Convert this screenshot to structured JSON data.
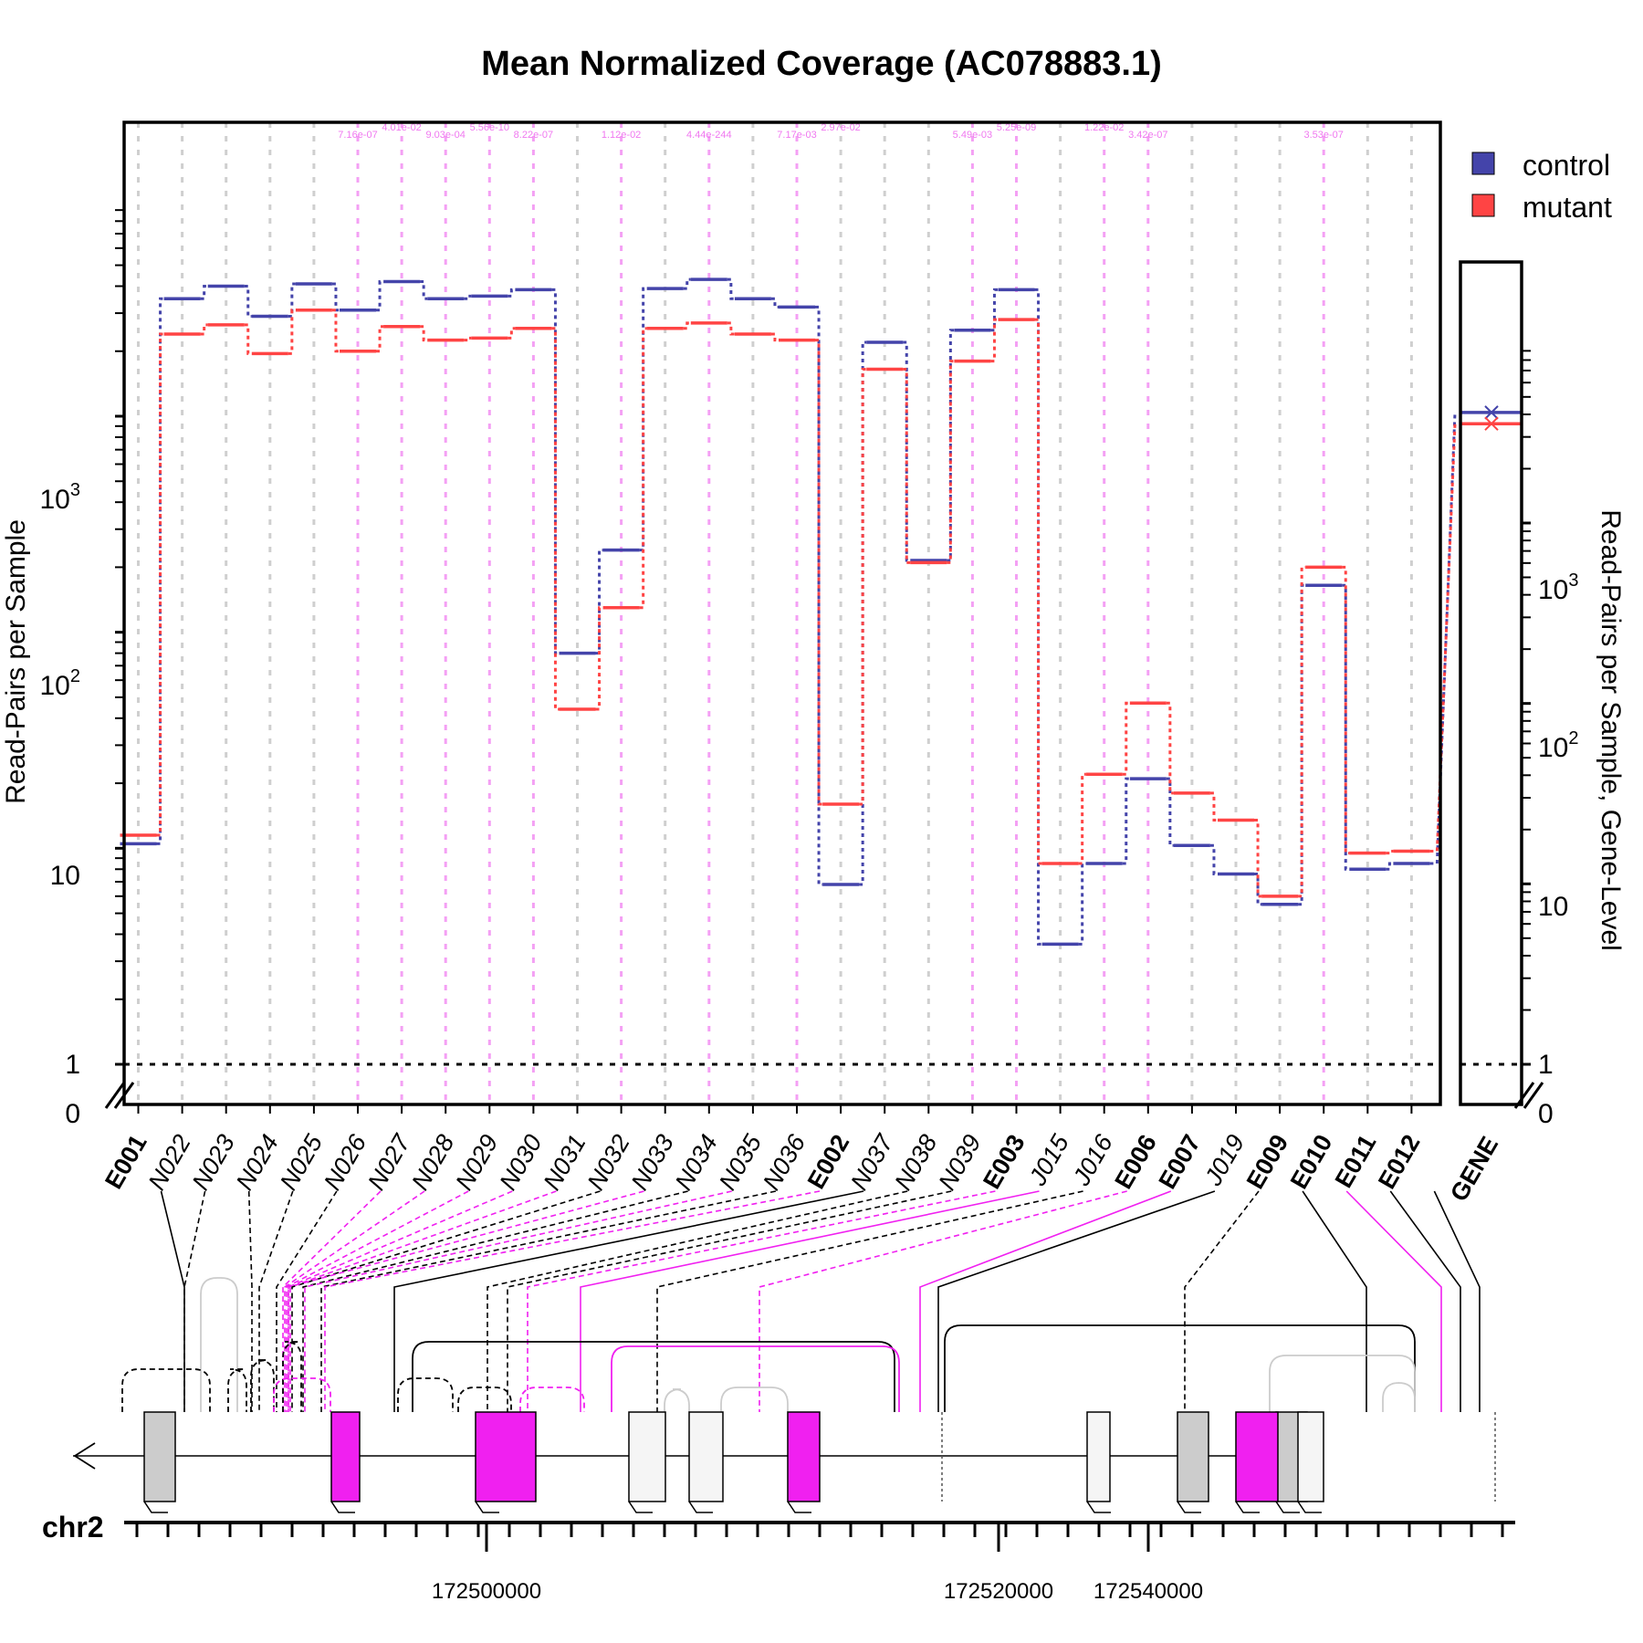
{
  "title": "Mean Normalized Coverage (AC078883.1)",
  "ylabel_left": "Read-Pairs per Sample",
  "ylabel_right": "Read-Pairs per Sample, Gene-Level",
  "legend": {
    "control_label": "control",
    "mutant_label": "mutant",
    "control_color": "#4444aa",
    "mutant_color": "#ff4444"
  },
  "chromosome": "chr2",
  "chr_position_labels": [
    "172500000",
    "172520000",
    "172540000"
  ],
  "left_axis": {
    "scale": "log with 0 break",
    "tick_labels": [
      "0",
      "1",
      "10",
      "10",
      "10"
    ],
    "tick_sups": [
      "",
      "",
      "",
      "2",
      "3"
    ]
  },
  "right_axis": {
    "scale": "log with 0 break",
    "tick_labels": [
      "0",
      "1",
      "10",
      "10",
      "10"
    ],
    "tick_sups": [
      "",
      "",
      "",
      "2",
      "3"
    ]
  },
  "chart_data": {
    "type": "line",
    "features": [
      "E001",
      "N022",
      "N023",
      "N024",
      "N025",
      "N026",
      "N027",
      "N028",
      "N029",
      "N030",
      "N031",
      "N032",
      "N033",
      "N034",
      "N035",
      "N036",
      "E002",
      "N037",
      "N038",
      "N039",
      "E003",
      "J015",
      "J016",
      "E006",
      "E007",
      "J019",
      "E009",
      "E010",
      "E011",
      "E012"
    ],
    "feature_bold": [
      true,
      false,
      false,
      false,
      false,
      false,
      false,
      false,
      false,
      false,
      false,
      false,
      false,
      false,
      false,
      false,
      true,
      false,
      false,
      false,
      true,
      false,
      false,
      true,
      true,
      false,
      true,
      true,
      true,
      true
    ],
    "feature_sig": [
      false,
      false,
      false,
      false,
      false,
      true,
      true,
      true,
      true,
      true,
      false,
      true,
      false,
      true,
      false,
      true,
      false,
      false,
      false,
      true,
      true,
      false,
      true,
      true,
      false,
      false,
      false,
      true,
      false,
      false
    ],
    "pvalues": [
      "",
      "",
      "",
      "",
      "",
      "7.16e-07",
      "4.01e-02",
      "9.03e-04",
      "5.56e-10",
      "8.22e-07",
      "",
      "1.12e-02",
      "",
      "4.44e-244",
      "",
      "7.17e-03",
      "2.97e-02",
      "",
      "",
      "5.49e-03",
      "5.25e-09",
      "",
      "1.22e-02",
      "3.42e-07",
      "",
      "",
      "",
      "3.53e-07",
      "",
      ""
    ],
    "series": [
      {
        "name": "control",
        "values": [
          10.5,
          3500,
          4000,
          2900,
          4100,
          3100,
          4200,
          3500,
          3600,
          3850,
          80,
          240,
          3900,
          4300,
          3500,
          3200,
          6.8,
          2200,
          215,
          2500,
          3850,
          3.6,
          8.5,
          21,
          10.3,
          7.6,
          5.5,
          165,
          8.0,
          8.5
        ]
      },
      {
        "name": "mutant",
        "values": [
          11.5,
          2400,
          2650,
          1950,
          3100,
          2000,
          2600,
          2250,
          2300,
          2550,
          44,
          130,
          2550,
          2700,
          2400,
          2250,
          16,
          1650,
          210,
          1800,
          2800,
          8.5,
          22,
          47,
          18,
          13.5,
          6.0,
          200,
          9.5,
          9.7
        ]
      }
    ],
    "gene_level": {
      "label": "GENE",
      "control": 4100,
      "mutant": 3550
    },
    "ylim": [
      0,
      6000
    ],
    "y_scale": "log",
    "reference_line": 1,
    "grid": true,
    "legend_position": "top-right"
  },
  "transcripts": [
    {
      "color": "#cccccc",
      "boxes": [
        [
          158,
          192
        ],
        [
          1290,
          1324
        ],
        [
          1398,
          1432
        ]
      ]
    },
    {
      "color": "#f020f0",
      "boxes": [
        [
          363,
          394
        ],
        [
          521,
          587
        ],
        [
          863,
          898
        ],
        [
          1354,
          1400
        ]
      ]
    },
    {
      "color": "#f5f5f5",
      "boxes": [
        [
          689,
          729
        ],
        [
          755,
          792
        ],
        [
          1191,
          1216
        ],
        [
          1422,
          1450
        ]
      ]
    }
  ]
}
